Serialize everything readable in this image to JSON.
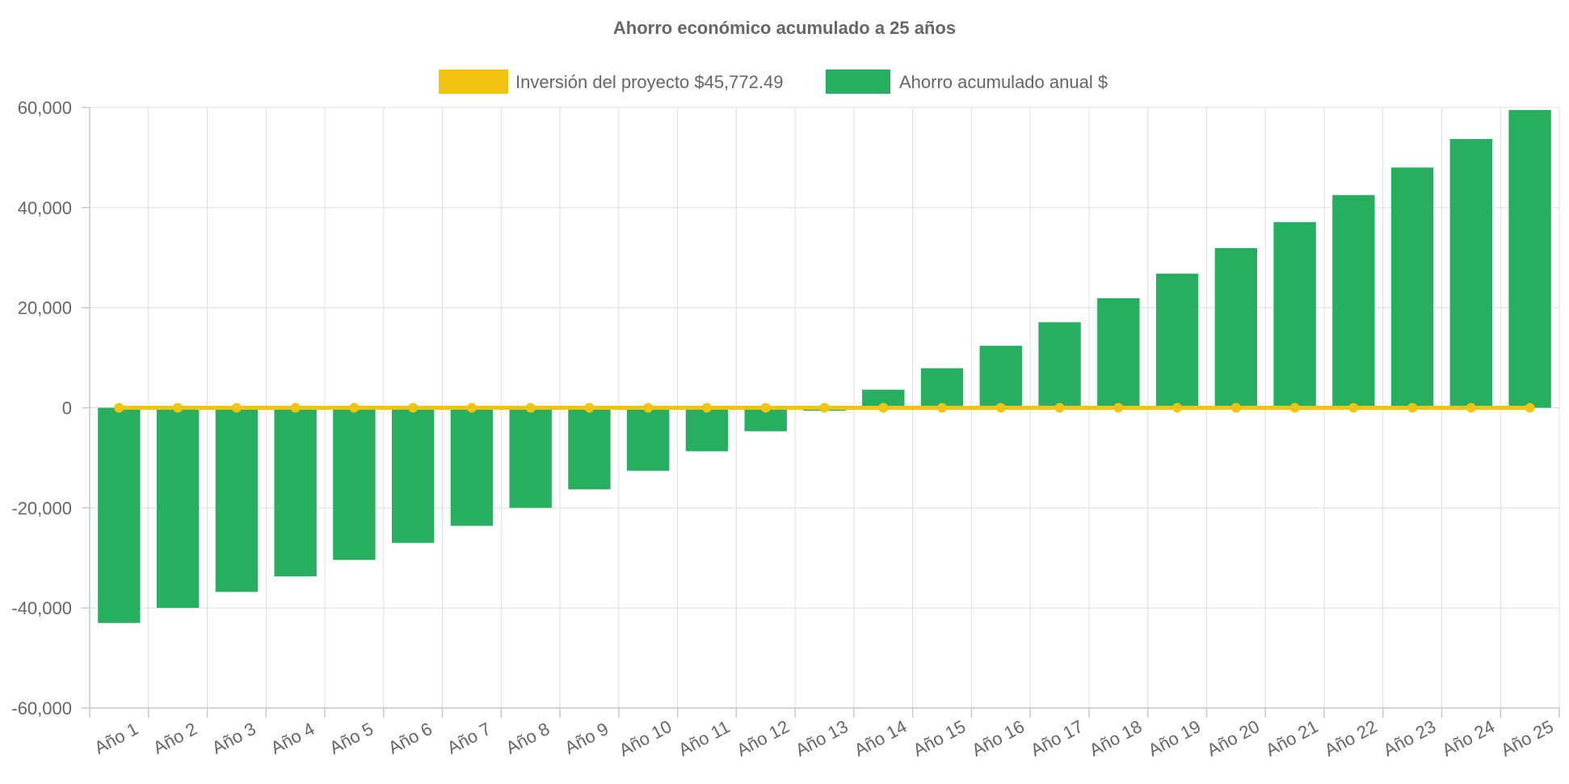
{
  "chart_data": {
    "type": "bar",
    "title": "Ahorro económico acumulado a 25 años",
    "categories": [
      "Año 1",
      "Año 2",
      "Año 3",
      "Año 4",
      "Año 5",
      "Año 6",
      "Año 7",
      "Año 8",
      "Año 9",
      "Año 10",
      "Año 11",
      "Año 12",
      "Año 13",
      "Año 14",
      "Año 15",
      "Año 16",
      "Año 17",
      "Año 18",
      "Año 19",
      "Año 20",
      "Año 21",
      "Año 22",
      "Año 23",
      "Año 24",
      "Año 25"
    ],
    "series": [
      {
        "name": "Inversión del proyecto $45,772.49",
        "type": "line",
        "color": "#f2c40f",
        "values": [
          0,
          0,
          0,
          0,
          0,
          0,
          0,
          0,
          0,
          0,
          0,
          0,
          0,
          0,
          0,
          0,
          0,
          0,
          0,
          0,
          0,
          0,
          0,
          0,
          0
        ]
      },
      {
        "name": "Ahorro acumulado anual $",
        "type": "bar",
        "color": "#27ae60",
        "values": [
          -43000,
          -40000,
          -36800,
          -33700,
          -30400,
          -27000,
          -23600,
          -20000,
          -16300,
          -12600,
          -8700,
          -4700,
          -600,
          3600,
          7900,
          12400,
          17100,
          21900,
          26800,
          31900,
          37100,
          42500,
          48000,
          53700,
          59500
        ]
      }
    ],
    "ylim": [
      -60000,
      60000
    ],
    "yticks": [
      "60,000",
      "40,000",
      "20,000",
      "0",
      "-20,000",
      "-40,000",
      "-60,000"
    ],
    "ytick_values": [
      60000,
      40000,
      20000,
      0,
      -20000,
      -40000,
      -60000
    ],
    "xlabel": "",
    "ylabel": "",
    "grid": true,
    "legend_position": "top"
  }
}
